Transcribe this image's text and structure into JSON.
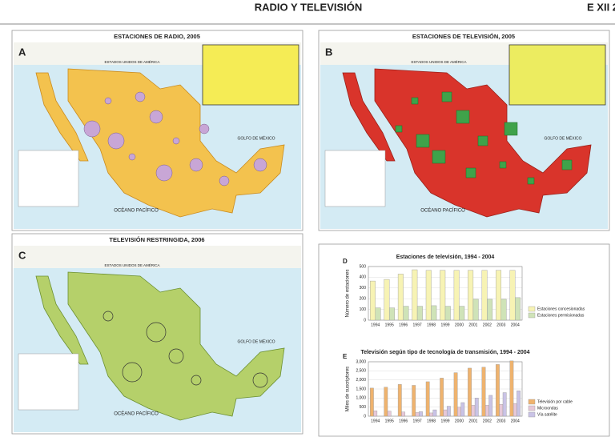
{
  "header": {
    "title": "RADIO Y TELEVISIÓN",
    "code": "E XII 2"
  },
  "maps": [
    {
      "letter": "A",
      "title": "ESTACIONES DE RADIO, 2005",
      "labels": [
        "ESTADOS UNIDOS DE AMÉRICA",
        "GOLFO DE MÉXICO",
        "OCÉANO PACÍFICO"
      ]
    },
    {
      "letter": "B",
      "title": "ESTACIONES DE TELEVISIÓN, 2005",
      "labels": [
        "ESTADOS UNIDOS DE AMÉRICA",
        "GOLFO DE MÉXICO",
        "OCÉANO PACÍFICO"
      ]
    },
    {
      "letter": "C",
      "title": "TELEVISIÓN RESTRINGIDA, 2006",
      "labels": [
        "ESTADOS UNIDOS DE AMÉRICA",
        "GOLFO DE MÉXICO",
        "OCÉANO PACÍFICO"
      ]
    }
  ],
  "chart_data": [
    {
      "type": "bar",
      "letter": "D",
      "title": "Estaciones de televisión, 1994 - 2004",
      "ylabel": "Número de estaciones",
      "categories": [
        "1994",
        "1995",
        "1996",
        "1997",
        "1998",
        "1999",
        "2000",
        "2001",
        "2002",
        "2003",
        "2004"
      ],
      "series": [
        {
          "name": "Estaciones concesionadas",
          "color": "#f7f3b4",
          "values": [
            365,
            380,
            430,
            470,
            465,
            465,
            465,
            465,
            465,
            465,
            465
          ]
        },
        {
          "name": "Estaciones permisionadas",
          "color": "#cfe3b8",
          "values": [
            115,
            115,
            130,
            130,
            135,
            130,
            130,
            195,
            195,
            195,
            210
          ]
        }
      ],
      "ylim": [
        0,
        500
      ],
      "yticks": [
        0,
        100,
        200,
        300,
        400,
        500
      ]
    },
    {
      "type": "bar",
      "letter": "E",
      "title": "Televisión según tipo de tecnología de transmisión, 1994 - 2004",
      "ylabel": "Miles de suscriptores",
      "categories": [
        "1994",
        "1995",
        "1996",
        "1997",
        "1998",
        "1999",
        "2000",
        "2001",
        "2002",
        "2003",
        "2004"
      ],
      "series": [
        {
          "name": "Televisión por cable",
          "color": "#efb36e",
          "values": [
            1550,
            1600,
            1750,
            1700,
            1900,
            2100,
            2400,
            2650,
            2700,
            2850,
            3050
          ]
        },
        {
          "name": "Microondas",
          "color": "#e6c8d8",
          "values": [
            300,
            280,
            230,
            200,
            180,
            350,
            500,
            600,
            600,
            650,
            700
          ]
        },
        {
          "name": "Vía satélite",
          "color": "#c9c3e6",
          "values": [
            0,
            0,
            0,
            250,
            350,
            550,
            750,
            1000,
            1150,
            1300,
            1400
          ]
        }
      ],
      "ylim": [
        0,
        3000
      ],
      "yticks": [
        0,
        500,
        {
          "value": 1000,
          "label": "1,000"
        },
        {
          "value": 1500,
          "label": "1,500"
        },
        {
          "value": 2000,
          "label": "2,000"
        },
        {
          "value": 2500,
          "label": "2,500"
        },
        {
          "value": 3000,
          "label": "3,000"
        }
      ]
    }
  ]
}
